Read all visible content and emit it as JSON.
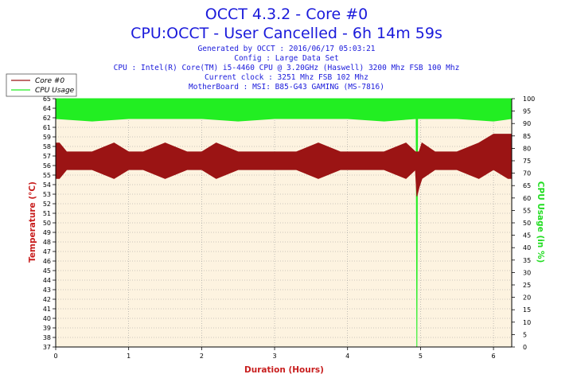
{
  "header": {
    "title": "OCCT 4.3.2 - Core #0",
    "subtitle": "CPU:OCCT - User Cancelled - 6h 14m 59s",
    "info": [
      "Generated by OCCT : 2016/06/17 05:03:21",
      "Config : Large Data Set",
      "CPU : Intel(R) Core(TM) i5-4460 CPU @ 3.20GHz (Haswell) 3200 Mhz FSB 100 Mhz",
      "Current clock : 3251 Mhz FSB 102 Mhz",
      "MotherBoard : MSI: B85-G43 GAMING (MS-7816)"
    ]
  },
  "colors": {
    "plot_background": "#fdf3e0",
    "temperature": "#9b1414",
    "cpu_usage": "#22ee22",
    "title": "#1a1adb",
    "ylabel_left": "#c81e1e",
    "ylabel_right": "#22dd22",
    "xlabel": "#c81e1e"
  },
  "chart_data": {
    "type": "line",
    "xlabel": "Duration (Hours)",
    "ylabel": "Temperature (°C)",
    "y2label": "CPU Usage (in %)",
    "xlim": [
      0,
      6.25
    ],
    "ylim": [
      37,
      65
    ],
    "y2lim": [
      0,
      100
    ],
    "x_ticks": [
      "0",
      "1",
      "2",
      "3",
      "4",
      "5",
      "6"
    ],
    "y_ticks": [
      "37",
      "38",
      "39",
      "40",
      "41",
      "42",
      "43",
      "44",
      "45",
      "46",
      "47",
      "48",
      "49",
      "50",
      "51",
      "52",
      "53",
      "54",
      "55",
      "56",
      "57",
      "58",
      "59",
      "61",
      "62",
      "64",
      "65"
    ],
    "y2_ticks": [
      "0",
      "5",
      "10",
      "15",
      "20",
      "25",
      "30",
      "35",
      "40",
      "45",
      "50",
      "55",
      "60",
      "65",
      "70",
      "75",
      "80",
      "85",
      "90",
      "95",
      "100"
    ],
    "grid": true,
    "legend": "top-left",
    "series": [
      {
        "name": "Core #0",
        "axis": "left",
        "x": [
          0,
          0.05,
          0.15,
          0.3,
          0.5,
          0.8,
          1.0,
          1.2,
          1.5,
          1.8,
          2.0,
          2.2,
          2.5,
          2.7,
          3.0,
          3.3,
          3.6,
          3.9,
          4.2,
          4.5,
          4.8,
          4.93,
          4.95,
          4.98,
          5.02,
          5.2,
          5.5,
          5.8,
          6.0,
          6.2,
          6.25
        ],
        "low": [
          56,
          56,
          57,
          57,
          57,
          56,
          57,
          57,
          56,
          57,
          57,
          56,
          57,
          57,
          57,
          57,
          56,
          57,
          57,
          57,
          56,
          57,
          54,
          55,
          56,
          57,
          57,
          56,
          57,
          56,
          56
        ],
        "high": [
          60,
          60,
          59,
          59,
          59,
          60,
          59,
          59,
          60,
          59,
          59,
          60,
          59,
          59,
          59,
          59,
          60,
          59,
          59,
          59,
          60,
          59,
          59,
          59,
          60,
          59,
          59,
          60,
          61,
          61,
          61
        ]
      },
      {
        "name": "CPU Usage",
        "axis": "right",
        "x": [
          0,
          0.5,
          1.0,
          1.5,
          2.0,
          2.5,
          3.0,
          3.5,
          4.0,
          4.5,
          4.94,
          4.95,
          4.96,
          5.0,
          5.5,
          6.0,
          6.25
        ],
        "low": [
          92,
          91,
          92,
          92,
          92,
          91,
          92,
          92,
          92,
          91,
          92,
          0,
          92,
          92,
          92,
          91,
          92
        ],
        "high": [
          100,
          100,
          100,
          100,
          100,
          100,
          100,
          100,
          100,
          100,
          100,
          100,
          100,
          100,
          100,
          100,
          100
        ]
      }
    ]
  }
}
